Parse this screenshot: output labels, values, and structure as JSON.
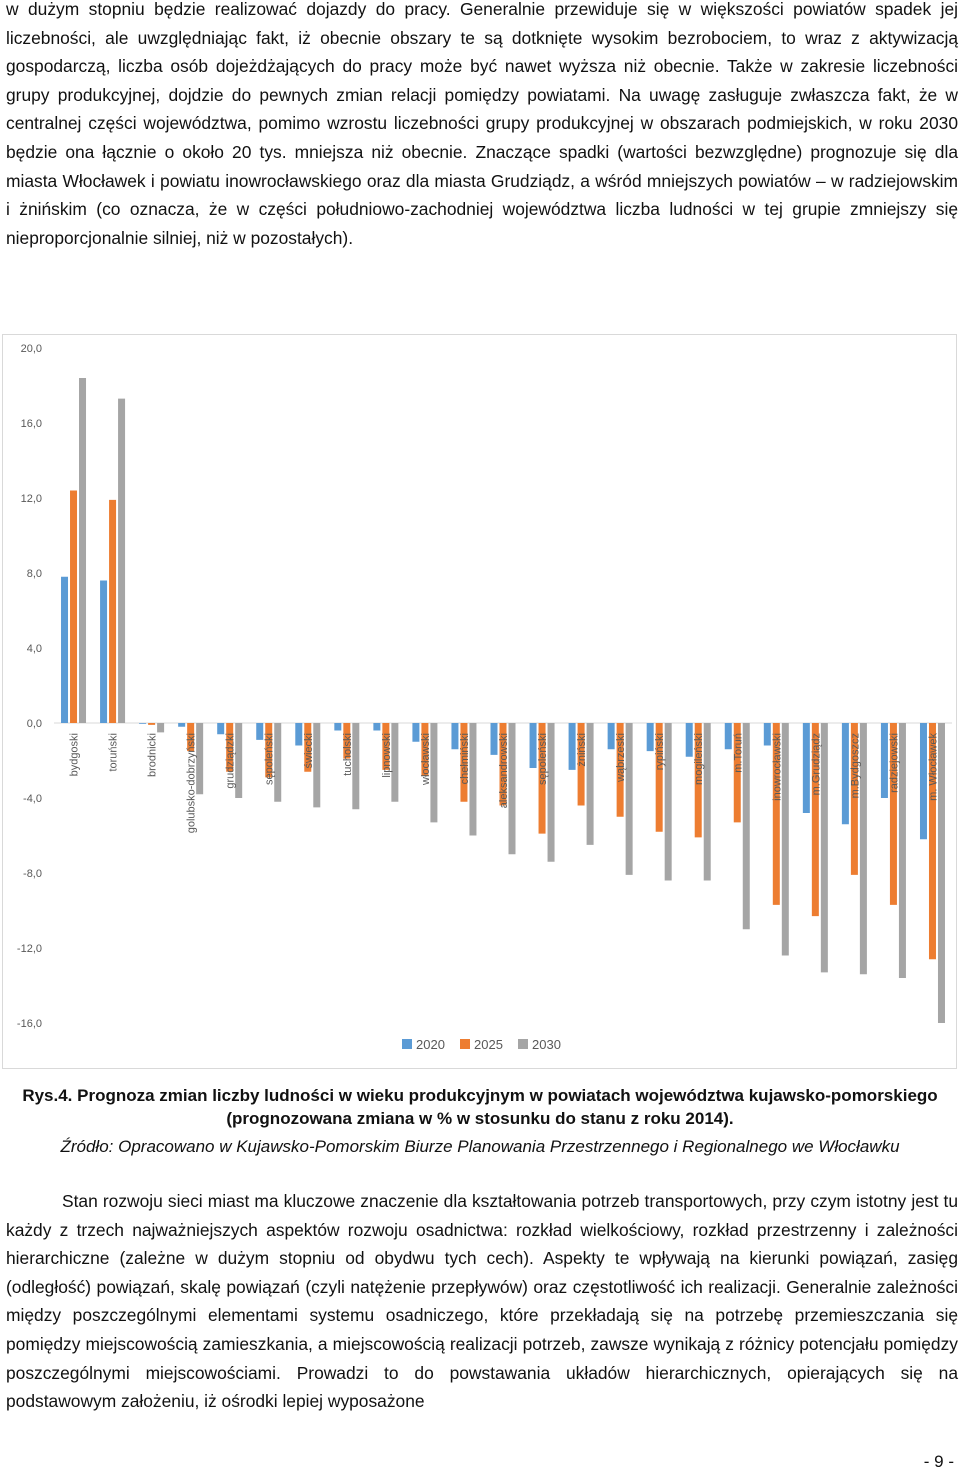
{
  "paragraphs": {
    "p1": "w dużym stopniu będzie realizować dojazdy do pracy. Generalnie przewiduje się w większości powiatów spadek jej liczebności, ale uwzględniając fakt, iż obecnie obszary te są dotknięte wysokim bezrobociem, to wraz z aktywizacją gospodarczą, liczba osób dojeżdżających do pracy może być nawet wyższa niż obecnie. Także w zakresie liczebności grupy produkcyjnej, dojdzie do pewnych zmian relacji pomiędzy powiatami. Na uwagę zasługuje zwłaszcza fakt, że w centralnej części województwa, pomimo wzrostu liczebności grupy produkcyjnej w obszarach podmiejskich, w roku 2030 będzie ona łącznie o około 20 tys. mniejsza niż obecnie. Znaczące spadki (wartości bezwzględne) prognozuje się dla miasta Włocławek i powiatu inowrocławskiego oraz dla miasta Grudziądz, a wśród mniejszych powiatów – w radziejowskim i żnińskim (co oznacza, że w części południowo-zachodniej województwa liczba ludności w tej grupie zmniejszy się nieproporcjonalnie silniej, niż w pozostałych).",
    "p3": "Stan rozwoju sieci miast ma kluczowe znaczenie dla kształtowania potrzeb transportowych, przy czym istotny jest tu każdy z trzech najważniejszych aspektów rozwoju osadnictwa: rozkład wielkościowy, rozkład przestrzenny i zależności hierarchiczne (zależne w dużym stopniu od obydwu tych cech). Aspekty te wpływają na kierunki powiązań, zasięg (odległość) powiązań, skalę powiązań (czyli natężenie przepływów) oraz częstotliwość ich realizacji. Generalnie zależności między poszczególnymi elementami systemu osadniczego, które przekładają się na potrzebę przemieszczania się pomiędzy miejscowością zamieszkania, a miejscowością realizacji potrzeb, zawsze wynikają z różnicy potencjału pomiędzy poszczególnymi miejscowościami. Prowadzi to do powstawania układów hierarchicznych, opierających się na podstawowym założeniu, iż ośrodki lepiej wyposażone"
  },
  "caption": {
    "title": "Rys.4. Prognoza zmian liczby ludności w wieku produkcyjnym w powiatach województwa kujawsko-pomorskiego (prognozowana zmiana w % w stosunku do stanu z roku 2014).",
    "source": "Źródło: Opracowano w Kujawsko-Pomorskim Biurze Planowania Przestrzennego i Regionalnego we Włocławku"
  },
  "page_number": "- 9 -",
  "chart_data": {
    "type": "bar",
    "categories": [
      "bydgoski",
      "toruński",
      "brodnicki",
      "golubsko-dobrzyński",
      "grudziądzki",
      "sępoleński",
      "świecki",
      "tucholski",
      "lipnowski",
      "włocławski",
      "chełmiński",
      "aleksandrowski",
      "sępoleński",
      "żniński",
      "wąbrzeski",
      "rypiński",
      "mogileński",
      "m.Toruń",
      "inowrocławski",
      "m.Grudziądz",
      "m.Bydgoszcz",
      "radziejowski",
      "m. Włocławek"
    ],
    "series": [
      {
        "name": "2020",
        "color": "#5B9BD5",
        "values": [
          7.8,
          7.6,
          0,
          -0.2,
          -0.6,
          -0.9,
          -1.2,
          -0.4,
          -0.4,
          -1.0,
          -1.4,
          -1.7,
          -2.4,
          -2.5,
          -1.4,
          -1.5,
          -1.8,
          -1.4,
          -1.2,
          -4.8,
          -5.4,
          -4.0,
          -6.2
        ]
      },
      {
        "name": "2025",
        "color": "#ED7D31",
        "values": [
          12.4,
          11.9,
          -0.1,
          -1.5,
          -2.6,
          -2.9,
          -2.6,
          -1.9,
          -2.5,
          -2.8,
          -4.2,
          -4.4,
          -5.9,
          -4.4,
          -5.0,
          -5.8,
          -6.1,
          -5.3,
          -9.7,
          -10.3,
          -8.1,
          -9.7,
          -12.6
        ]
      },
      {
        "name": "2030",
        "color": "#A5A5A5",
        "values": [
          18.4,
          17.3,
          -0.5,
          -3.8,
          -4.0,
          -4.2,
          -4.5,
          -4.6,
          -4.2,
          -5.3,
          -6.0,
          -7.0,
          -7.4,
          -6.5,
          -8.1,
          -8.4,
          -8.4,
          -11.0,
          -12.4,
          -13.3,
          -13.4,
          -13.6,
          -16.0
        ]
      }
    ],
    "y_ticks": [
      "20,0",
      "16,0",
      "12,0",
      "8,0",
      "4,0",
      "0,0",
      "-4,0",
      "-8,0",
      "-12,0",
      "-16,0"
    ],
    "ylim": [
      -16.5,
      20
    ],
    "title": "",
    "xlabel": "",
    "ylabel": "",
    "legend_position": "bottom"
  }
}
